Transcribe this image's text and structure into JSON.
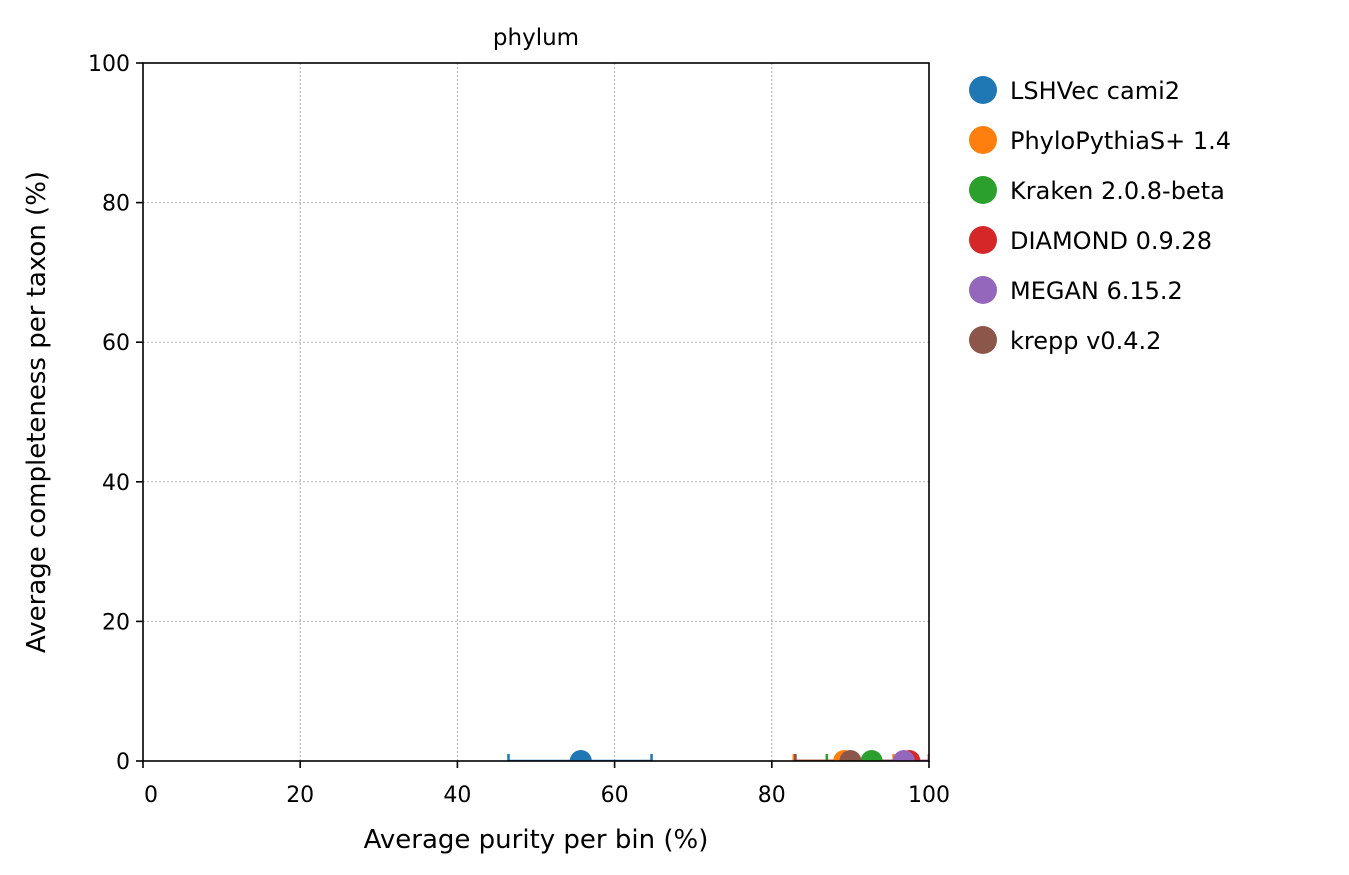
{
  "chart_data": {
    "type": "scatter",
    "title": "phylum",
    "xlabel": "Average purity per bin (%)",
    "ylabel": "Average completeness per taxon (%)",
    "xlim": [
      0,
      100
    ],
    "ylim": [
      0,
      100
    ],
    "xticks": [
      0,
      20,
      40,
      60,
      80,
      100
    ],
    "yticks": [
      0,
      20,
      40,
      60,
      80,
      100
    ],
    "grid": true,
    "legend_position": "outside-right-top",
    "series": [
      {
        "name": "LSHVec cami2",
        "color": "#1f77b4",
        "x": 55.7,
        "y": 0.0,
        "x_err_low": 46.5,
        "x_err_high": 64.7
      },
      {
        "name": "PhyloPythiaS+ 1.4",
        "color": "#ff7f0e",
        "x": 89.2,
        "y": 0.0,
        "x_err_low": 82.8,
        "x_err_high": 95.5
      },
      {
        "name": "Kraken 2.0.8-beta",
        "color": "#2ca02c",
        "x": 92.7,
        "y": 0.0,
        "x_err_low": 87.0,
        "x_err_high": 98.5
      },
      {
        "name": "DIAMOND 0.9.28",
        "color": "#d62728",
        "x": 97.5,
        "y": 0.0,
        "x_err_low": 83.0,
        "x_err_high": 100.0
      },
      {
        "name": "MEGAN 6.15.2",
        "color": "#9467bd",
        "x": 96.8,
        "y": 0.0,
        "x_err_low": 93.5,
        "x_err_high": 100.0
      },
      {
        "name": "krepp v0.4.2",
        "color": "#8c564b",
        "x": 90.0,
        "y": 0.0,
        "x_err_low": 83.0,
        "x_err_high": 97.0
      }
    ]
  }
}
